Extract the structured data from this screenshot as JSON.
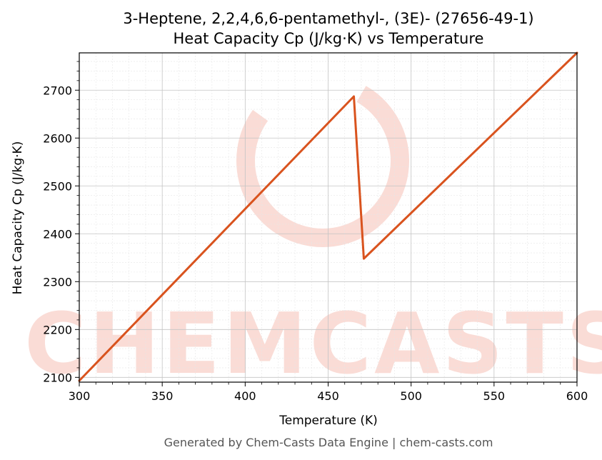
{
  "chart_data": {
    "type": "line",
    "title": "3-Heptene, 2,2,4,6,6-pentamethyl-, (3E)- (27656-49-1)",
    "subtitle": "Heat Capacity Cp (J/kg·K) vs Temperature",
    "xlabel": "Temperature (K)",
    "ylabel": "Heat Capacity Cp (J/kg·K)",
    "xlim": [
      300,
      600
    ],
    "ylim": [
      2090,
      2778
    ],
    "xticks": [
      300,
      350,
      400,
      450,
      500,
      550,
      600
    ],
    "yticks": [
      2100,
      2200,
      2300,
      2400,
      2500,
      2600,
      2700
    ],
    "grid": true,
    "series": [
      {
        "color": "#d9531e",
        "x": [
          300,
          465.5,
          471.5,
          600
        ],
        "y": [
          2093,
          2687,
          2348,
          2778
        ]
      }
    ]
  },
  "watermark": {
    "text": "CHEMCASTS",
    "color": "#fadcd6"
  },
  "footer": "Generated by Chem-Casts Data Engine | chem-casts.com"
}
